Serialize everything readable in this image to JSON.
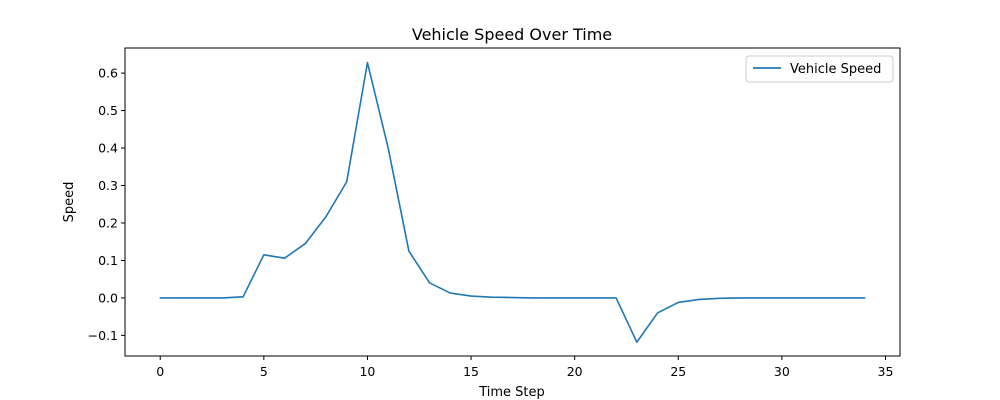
{
  "chart_data": {
    "type": "line",
    "title": "Vehicle Speed Over Time",
    "xlabel": "Time Step",
    "ylabel": "Speed",
    "xlim": [
      -1.7,
      35.7
    ],
    "ylim": [
      -0.155,
      0.667
    ],
    "xticks": [
      0,
      5,
      10,
      15,
      20,
      25,
      30,
      35
    ],
    "yticks": [
      -0.1,
      0.0,
      0.1,
      0.2,
      0.3,
      0.4,
      0.5,
      0.6
    ],
    "ytick_labels": [
      "−0.1",
      "0.0",
      "0.1",
      "0.2",
      "0.3",
      "0.4",
      "0.5",
      "0.6"
    ],
    "grid": false,
    "legend_position": "upper right",
    "series": [
      {
        "name": "Vehicle Speed",
        "color": "#1f77b4",
        "x": [
          0,
          1,
          2,
          3,
          4,
          5,
          6,
          7,
          8,
          9,
          10,
          11,
          12,
          13,
          14,
          15,
          16,
          17,
          18,
          19,
          20,
          21,
          22,
          23,
          24,
          25,
          26,
          27,
          28,
          29,
          30,
          31,
          32,
          33,
          34
        ],
        "y": [
          0.0,
          0.0,
          0.0,
          0.0,
          0.003,
          0.115,
          0.106,
          0.145,
          0.217,
          0.31,
          0.628,
          0.4,
          0.125,
          0.04,
          0.013,
          0.005,
          0.002,
          0.001,
          0.0,
          0.0,
          0.0,
          0.0,
          0.0,
          -0.118,
          -0.04,
          -0.012,
          -0.004,
          -0.001,
          0.0,
          0.0,
          0.0,
          0.0,
          0.0,
          0.0,
          0.0
        ]
      }
    ]
  }
}
